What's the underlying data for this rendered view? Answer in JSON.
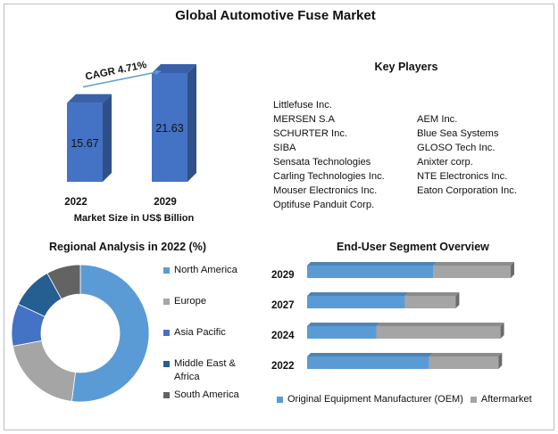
{
  "title": "Global Automotive Fuse Market",
  "colors": {
    "bar_blue": "#4472c4",
    "north_america": "#5b9bd5",
    "europe": "#a5a5a5",
    "asia_pacific": "#4472c4",
    "middle_east_africa": "#255e91",
    "south_america": "#636363",
    "oem": "#5b9bd5",
    "aftermarket": "#a5a5a5",
    "arrow": "#5b9bd5"
  },
  "key_players": {
    "title": "Key Players",
    "left": [
      "Littlefuse Inc.",
      "MERSEN S.A",
      "SCHURTER Inc.",
      "SIBA",
      "Sensata Technologies",
      "Carling Technologies Inc.",
      "Mouser Electronics Inc.",
      "Optifuse Panduit Corp."
    ],
    "right": [
      "AEM Inc.",
      "Blue Sea Systems",
      "GLOSO Tech Inc.",
      "Anixter corp.",
      "NTE Electronics Inc.",
      "Eaton Corporation Inc."
    ]
  },
  "chart_data": [
    {
      "type": "bar",
      "categories": [
        "2022",
        "2029"
      ],
      "values": [
        15.67,
        21.63
      ],
      "xlabel": "Market Size in US$ Billion",
      "annotation": "CAGR 4.71%"
    },
    {
      "type": "pie",
      "title": "Regional Analysis in 2022 (%)",
      "donut": true,
      "categories": [
        "North America",
        "Europe",
        "Asia Pacific",
        "Middle East & Africa",
        "South America"
      ],
      "values": [
        52,
        20,
        10,
        10,
        8
      ],
      "legend": "right"
    },
    {
      "type": "bar",
      "orientation": "horizontal",
      "stacked": true,
      "title": "End-User Segment Overview",
      "categories": [
        "2029",
        "2027",
        "2024",
        "2022"
      ],
      "series": [
        {
          "name": "Original Equipment Manufacturer (OEM)",
          "values": [
            62,
            48,
            34,
            60
          ]
        },
        {
          "name": "Aftermarket",
          "values": [
            38,
            25,
            61,
            34
          ]
        }
      ],
      "legend": "bottom"
    }
  ]
}
